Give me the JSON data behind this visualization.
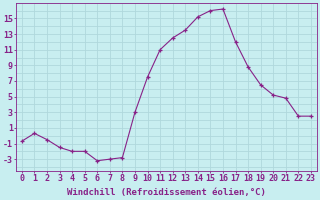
{
  "x": [
    0,
    1,
    2,
    3,
    4,
    5,
    6,
    7,
    8,
    9,
    10,
    11,
    12,
    13,
    14,
    15,
    16,
    17,
    18,
    19,
    20,
    21,
    22,
    23
  ],
  "y": [
    -0.7,
    0.3,
    -0.5,
    -1.5,
    -2.0,
    -2.0,
    -3.2,
    -3.0,
    -2.8,
    3.0,
    7.5,
    11.0,
    12.5,
    13.5,
    15.2,
    16.0,
    16.2,
    12.0,
    8.8,
    6.5,
    5.2,
    4.8,
    2.5,
    2.5
  ],
  "line_color": "#882288",
  "marker": "+",
  "bg_color": "#C8EEF0",
  "grid_color": "#B0D8DC",
  "xlabel": "Windchill (Refroidissement éolien,°C)",
  "ylabel_ticks": [
    -3,
    -1,
    1,
    3,
    5,
    7,
    9,
    11,
    13,
    15
  ],
  "xlim": [
    -0.5,
    23.5
  ],
  "ylim": [
    -4.5,
    17
  ],
  "xlabel_color": "#882288",
  "tick_color": "#882288",
  "font_size_label": 6.5,
  "font_size_tick": 6.0
}
